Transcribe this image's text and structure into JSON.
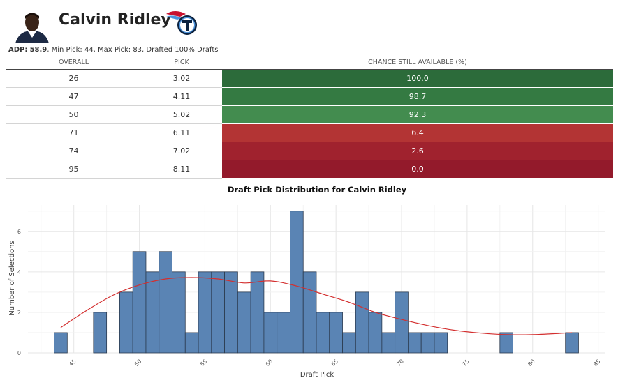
{
  "player": {
    "name": "Calvin Ridley",
    "avatar_icon": "player-headshot-icon",
    "team_logo_icon": "titans-logo-icon",
    "adp_label": "ADP:",
    "adp_value": "58.9",
    "adp_rest": ", Min Pick: 44, Max Pick: 83, Drafted 100% Drafts"
  },
  "table": {
    "headers": [
      "OVERALL",
      "PICK",
      "CHANCE STILL AVAILABLE (%)"
    ],
    "rows": [
      {
        "overall": "26",
        "pick": "3.02",
        "chance": "100.0",
        "color": "#2c6b3a"
      },
      {
        "overall": "47",
        "pick": "4.11",
        "chance": "98.7",
        "color": "#347a42"
      },
      {
        "overall": "50",
        "pick": "5.02",
        "chance": "92.3",
        "color": "#438c4f"
      },
      {
        "overall": "71",
        "pick": "6.11",
        "chance": "6.4",
        "color": "#b33434"
      },
      {
        "overall": "74",
        "pick": "7.02",
        "chance": "2.6",
        "color": "#a0222e"
      },
      {
        "overall": "95",
        "pick": "8.11",
        "chance": "0.0",
        "color": "#931a2b"
      }
    ]
  },
  "chart_data": {
    "type": "bar",
    "title": "Draft Pick Distribution for Calvin Ridley",
    "xlabel": "Draft Pick",
    "ylabel": "Number of Selections",
    "xlim": [
      41.5,
      85.5
    ],
    "ylim": [
      0,
      7.3
    ],
    "xticks": [
      45,
      50,
      55,
      60,
      65,
      70,
      75,
      80,
      85
    ],
    "yticks": [
      0,
      2,
      4,
      6
    ],
    "bar_color": "#5a84b4",
    "density_color": "#d32f2f",
    "bars": [
      {
        "x": 44,
        "y": 1
      },
      {
        "x": 47,
        "y": 2
      },
      {
        "x": 49,
        "y": 3
      },
      {
        "x": 50,
        "y": 5
      },
      {
        "x": 51,
        "y": 4
      },
      {
        "x": 52,
        "y": 5
      },
      {
        "x": 53,
        "y": 4
      },
      {
        "x": 54,
        "y": 1
      },
      {
        "x": 55,
        "y": 4
      },
      {
        "x": 56,
        "y": 4
      },
      {
        "x": 57,
        "y": 4
      },
      {
        "x": 58,
        "y": 3
      },
      {
        "x": 59,
        "y": 4
      },
      {
        "x": 60,
        "y": 2
      },
      {
        "x": 61,
        "y": 2
      },
      {
        "x": 62,
        "y": 7
      },
      {
        "x": 63,
        "y": 4
      },
      {
        "x": 64,
        "y": 2
      },
      {
        "x": 65,
        "y": 2
      },
      {
        "x": 66,
        "y": 1
      },
      {
        "x": 67,
        "y": 3
      },
      {
        "x": 68,
        "y": 2
      },
      {
        "x": 69,
        "y": 1
      },
      {
        "x": 70,
        "y": 3
      },
      {
        "x": 71,
        "y": 1
      },
      {
        "x": 72,
        "y": 1
      },
      {
        "x": 73,
        "y": 1
      },
      {
        "x": 78,
        "y": 1
      },
      {
        "x": 83,
        "y": 1
      }
    ],
    "density": [
      [
        44,
        1.25
      ],
      [
        46,
        2.1
      ],
      [
        48,
        2.85
      ],
      [
        50,
        3.35
      ],
      [
        52,
        3.65
      ],
      [
        54,
        3.72
      ],
      [
        56,
        3.65
      ],
      [
        58,
        3.45
      ],
      [
        60,
        3.55
      ],
      [
        62,
        3.3
      ],
      [
        64,
        2.9
      ],
      [
        66,
        2.5
      ],
      [
        68,
        2.0
      ],
      [
        70,
        1.65
      ],
      [
        72,
        1.35
      ],
      [
        74,
        1.12
      ],
      [
        76,
        0.98
      ],
      [
        78,
        0.9
      ],
      [
        80,
        0.9
      ],
      [
        82,
        0.96
      ],
      [
        83,
        1.0
      ]
    ]
  }
}
